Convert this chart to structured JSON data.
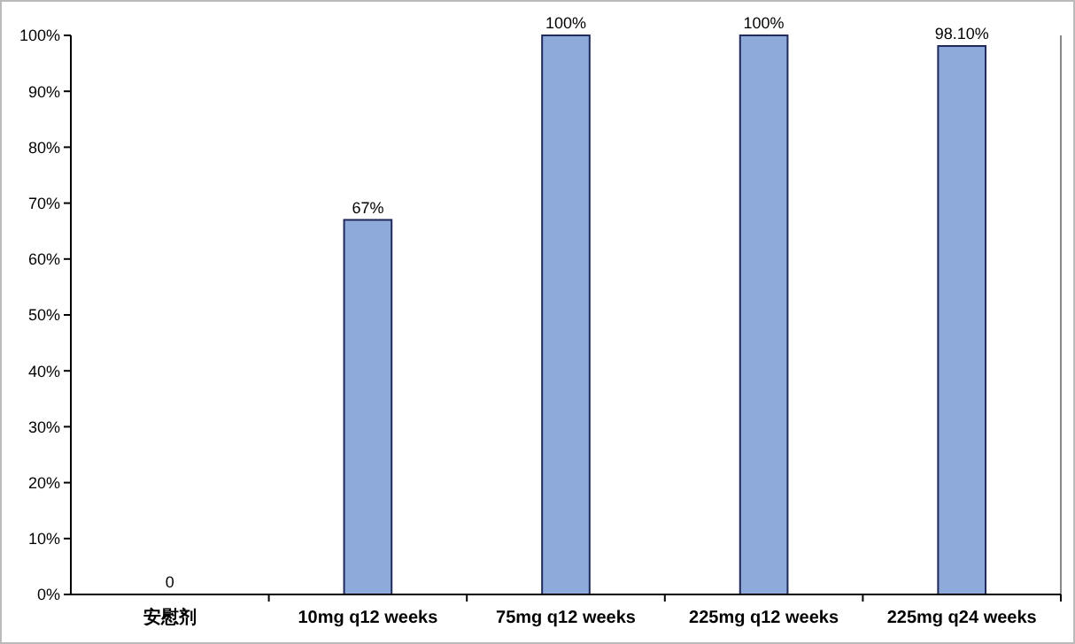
{
  "chart_data": {
    "type": "bar",
    "categories": [
      "安慰剂",
      "10mg q12 weeks",
      "75mg q12 weeks",
      "225mg q12 weeks",
      "225mg q24 weeks"
    ],
    "values": [
      0,
      67,
      100,
      100,
      98.1
    ],
    "value_labels": [
      "0",
      "67%",
      "100%",
      "100%",
      "98.10%"
    ],
    "color": "#8eaadb",
    "ylim": [
      0,
      100
    ],
    "yticks": [
      {
        "value": 0,
        "label": "0%"
      },
      {
        "value": 10,
        "label": "10%"
      },
      {
        "value": 20,
        "label": "20%"
      },
      {
        "value": 30,
        "label": "30%"
      },
      {
        "value": 40,
        "label": "40%"
      },
      {
        "value": 50,
        "label": "50%"
      },
      {
        "value": 60,
        "label": "60%"
      },
      {
        "value": 70,
        "label": "70%"
      },
      {
        "value": 80,
        "label": "80%"
      },
      {
        "value": 90,
        "label": "90%"
      },
      {
        "value": 100,
        "label": "100%"
      }
    ],
    "grid": false
  }
}
